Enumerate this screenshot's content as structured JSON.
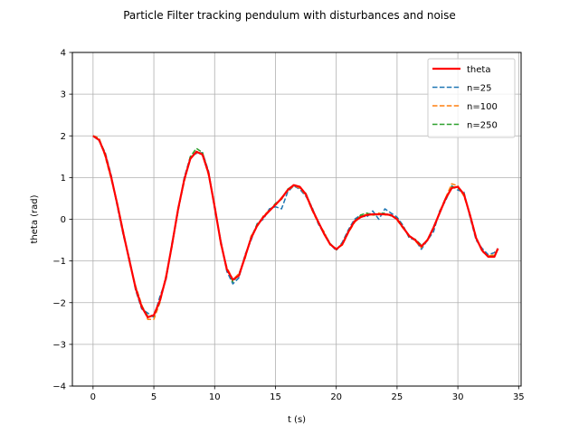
{
  "chart_data": {
    "type": "line",
    "title": "Particle Filter tracking pendulum with disturbances and noise",
    "xlabel": "t (s)",
    "ylabel": "theta (rad)",
    "xlim": [
      -1.7,
      35.2
    ],
    "ylim": [
      -4,
      4
    ],
    "xticks": [
      0,
      5,
      10,
      15,
      20,
      25,
      30,
      35
    ],
    "yticks": [
      -4,
      -3,
      -2,
      -1,
      0,
      1,
      2,
      3,
      4
    ],
    "grid": true,
    "legend_position": "top-right",
    "series": [
      {
        "name": "theta",
        "color": "#ff0000",
        "style": "solid",
        "x": [
          0,
          0.5,
          1,
          1.5,
          2,
          2.5,
          3,
          3.5,
          4,
          4.5,
          5,
          5.5,
          6,
          6.5,
          7,
          7.5,
          8,
          8.5,
          9,
          9.5,
          10,
          10.5,
          11,
          11.5,
          12,
          12.5,
          13,
          13.5,
          14,
          14.5,
          15,
          15.5,
          16,
          16.5,
          17,
          17.5,
          18,
          18.5,
          19,
          19.5,
          20,
          20.5,
          21,
          21.5,
          22,
          22.5,
          23,
          23.5,
          24,
          24.5,
          25,
          25.5,
          26,
          26.5,
          27,
          27.5,
          28,
          28.5,
          29,
          29.5,
          30,
          30.5,
          31,
          31.5,
          32,
          32.5,
          33,
          33.3
        ],
        "values": [
          2.0,
          1.9,
          1.55,
          1.0,
          0.35,
          -0.35,
          -1.0,
          -1.65,
          -2.1,
          -2.35,
          -2.3,
          -1.95,
          -1.4,
          -0.6,
          0.25,
          0.95,
          1.45,
          1.62,
          1.55,
          1.1,
          0.3,
          -0.55,
          -1.2,
          -1.45,
          -1.35,
          -0.9,
          -0.45,
          -0.15,
          0.05,
          0.2,
          0.35,
          0.5,
          0.7,
          0.82,
          0.78,
          0.6,
          0.25,
          -0.05,
          -0.35,
          -0.6,
          -0.72,
          -0.6,
          -0.3,
          -0.05,
          0.05,
          0.1,
          0.12,
          0.12,
          0.12,
          0.1,
          0.0,
          -0.2,
          -0.4,
          -0.5,
          -0.65,
          -0.5,
          -0.2,
          0.15,
          0.5,
          0.75,
          0.78,
          0.6,
          0.1,
          -0.45,
          -0.75,
          -0.9,
          -0.9,
          -0.7
        ]
      },
      {
        "name": "n=25",
        "color": "#1f77b4",
        "style": "dashed",
        "x": [
          0,
          0.5,
          1,
          1.5,
          2,
          2.5,
          3,
          3.5,
          4,
          4.5,
          5,
          5.5,
          6,
          6.5,
          7,
          7.5,
          8,
          8.5,
          9,
          9.5,
          10,
          10.5,
          11,
          11.5,
          12,
          12.5,
          13,
          13.5,
          14,
          14.5,
          15,
          15.5,
          16,
          16.5,
          17,
          17.5,
          18,
          18.5,
          19,
          19.5,
          20,
          20.5,
          21,
          21.5,
          22,
          22.5,
          23,
          23.5,
          24,
          24.5,
          25,
          25.5,
          26,
          26.5,
          27,
          27.5,
          28,
          28.5,
          29,
          29.5,
          30,
          30.5,
          31,
          31.5,
          32,
          32.5,
          33,
          33.3
        ],
        "values": [
          2.0,
          1.88,
          1.6,
          1.05,
          0.3,
          -0.4,
          -0.95,
          -1.7,
          -2.15,
          -2.25,
          -2.35,
          -1.85,
          -1.45,
          -0.55,
          0.2,
          1.0,
          1.5,
          1.58,
          1.6,
          1.15,
          0.25,
          -0.5,
          -1.25,
          -1.55,
          -1.4,
          -0.85,
          -0.5,
          -0.1,
          0.0,
          0.25,
          0.3,
          0.25,
          0.65,
          0.8,
          0.72,
          0.55,
          0.3,
          -0.1,
          -0.35,
          -0.6,
          -0.75,
          -0.55,
          -0.25,
          0.0,
          0.1,
          0.05,
          0.2,
          0.0,
          0.25,
          0.15,
          0.05,
          -0.15,
          -0.45,
          -0.5,
          -0.72,
          -0.5,
          -0.3,
          0.2,
          0.45,
          0.8,
          0.7,
          0.65,
          0.05,
          -0.5,
          -0.7,
          -0.85,
          -0.8,
          -0.7
        ]
      },
      {
        "name": "n=100",
        "color": "#ff7f0e",
        "style": "dashed",
        "x": [
          0,
          0.5,
          1,
          1.5,
          2,
          2.5,
          3,
          3.5,
          4,
          4.5,
          5,
          5.5,
          6,
          6.5,
          7,
          7.5,
          8,
          8.5,
          9,
          9.5,
          10,
          10.5,
          11,
          11.5,
          12,
          12.5,
          13,
          13.5,
          14,
          14.5,
          15,
          15.5,
          16,
          16.5,
          17,
          17.5,
          18,
          18.5,
          19,
          19.5,
          20,
          20.5,
          21,
          21.5,
          22,
          22.5,
          23,
          23.5,
          24,
          24.5,
          25,
          25.5,
          26,
          26.5,
          27,
          27.5,
          28,
          28.5,
          29,
          29.5,
          30,
          30.5,
          31,
          31.5,
          32,
          32.5,
          33,
          33.3
        ],
        "values": [
          2.0,
          1.95,
          1.5,
          0.95,
          0.38,
          -0.3,
          -1.05,
          -1.6,
          -2.05,
          -2.4,
          -2.4,
          -2.0,
          -1.35,
          -0.65,
          0.28,
          0.9,
          1.5,
          1.6,
          1.58,
          1.05,
          0.35,
          -0.6,
          -1.15,
          -1.45,
          -1.3,
          -0.95,
          -0.4,
          -0.18,
          0.08,
          0.22,
          0.33,
          0.52,
          0.68,
          0.8,
          0.75,
          0.58,
          0.22,
          -0.08,
          -0.3,
          -0.62,
          -0.7,
          -0.62,
          -0.32,
          -0.08,
          0.08,
          0.12,
          0.1,
          0.15,
          0.1,
          0.12,
          -0.02,
          -0.22,
          -0.38,
          -0.52,
          -0.68,
          -0.48,
          -0.22,
          0.18,
          0.52,
          0.85,
          0.8,
          0.55,
          0.12,
          -0.42,
          -0.78,
          -0.88,
          -0.85,
          -0.7
        ]
      },
      {
        "name": "n=250",
        "color": "#2ca02c",
        "style": "dashed",
        "x": [
          0,
          0.5,
          1,
          1.5,
          2,
          2.5,
          3,
          3.5,
          4,
          4.5,
          5,
          5.5,
          6,
          6.5,
          7,
          7.5,
          8,
          8.5,
          9,
          9.5,
          10,
          10.5,
          11,
          11.5,
          12,
          12.5,
          13,
          13.5,
          14,
          14.5,
          15,
          15.5,
          16,
          16.5,
          17,
          17.5,
          18,
          18.5,
          19,
          19.5,
          20,
          20.5,
          21,
          21.5,
          22,
          22.5,
          23,
          23.5,
          24,
          24.5,
          25,
          25.5,
          26,
          26.5,
          27,
          27.5,
          28,
          28.5,
          29,
          29.5,
          30,
          30.5,
          31,
          31.5,
          32,
          32.5,
          33,
          33.3
        ],
        "values": [
          2.0,
          1.92,
          1.58,
          0.98,
          0.33,
          -0.33,
          -1.02,
          -1.62,
          -2.08,
          -2.32,
          -2.32,
          -1.98,
          -1.38,
          -0.62,
          0.22,
          0.92,
          1.5,
          1.7,
          1.6,
          1.12,
          0.32,
          -0.55,
          -1.18,
          -1.5,
          -1.32,
          -0.9,
          -0.43,
          -0.12,
          0.05,
          0.2,
          0.38,
          0.48,
          0.72,
          0.82,
          0.77,
          0.62,
          0.27,
          -0.05,
          -0.33,
          -0.58,
          -0.73,
          -0.58,
          -0.28,
          -0.05,
          0.1,
          0.15,
          0.1,
          0.12,
          0.15,
          0.08,
          0.02,
          -0.18,
          -0.42,
          -0.48,
          -0.62,
          -0.52,
          -0.18,
          0.14,
          0.48,
          0.78,
          0.75,
          0.62,
          0.08,
          -0.45,
          -0.75,
          -0.9,
          -0.88,
          -0.7
        ]
      }
    ]
  }
}
